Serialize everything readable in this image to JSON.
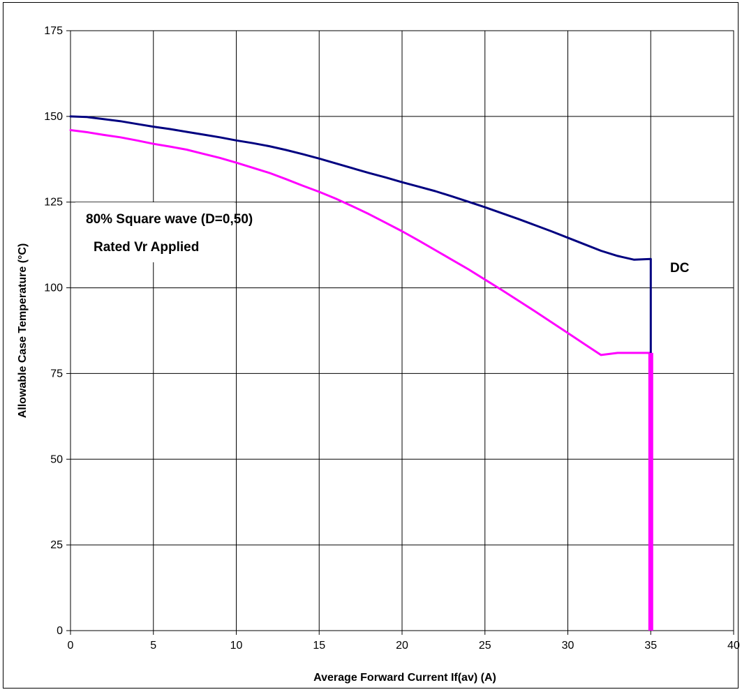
{
  "chart_data": {
    "type": "line",
    "title": "",
    "xlabel": "Average Forward Current  If(av)  (A)",
    "ylabel": "Allowable Case Temperature  (°C)",
    "xlim": [
      0,
      40
    ],
    "ylim": [
      0,
      175
    ],
    "x_ticks": [
      0,
      5,
      10,
      15,
      20,
      25,
      30,
      35,
      40
    ],
    "y_ticks": [
      0,
      25,
      50,
      75,
      100,
      125,
      150,
      175
    ],
    "grid": true,
    "annotations": [
      "80% Square wave (D=0,50)",
      "Rated Vr Applied",
      "DC"
    ],
    "series": [
      {
        "color": "#000080",
        "x": [
          0,
          1,
          2,
          3,
          4,
          5,
          6,
          7,
          8,
          9,
          10,
          11,
          12,
          13,
          14,
          15,
          16,
          17,
          18,
          19,
          20,
          21,
          22,
          23,
          24,
          25,
          26,
          27,
          28,
          29,
          30,
          31,
          32,
          33,
          34,
          35,
          35
        ],
        "y": [
          150,
          149.8,
          149.2,
          148.6,
          147.8,
          147,
          146.3,
          145.5,
          144.7,
          143.9,
          143,
          142.2,
          141.3,
          140.2,
          139,
          137.7,
          136.3,
          134.9,
          133.5,
          132.2,
          130.8,
          129.5,
          128.2,
          126.7,
          125.1,
          123.5,
          121.8,
          120.1,
          118.3,
          116.5,
          114.6,
          112.7,
          110.8,
          109.3,
          108.2,
          108.4,
          81
        ]
      },
      {
        "color": "#ff00ff",
        "x": [
          0,
          1,
          2,
          3,
          4,
          5,
          6,
          7,
          8,
          9,
          10,
          11,
          12,
          13,
          14,
          15,
          16,
          17,
          18,
          19,
          20,
          21,
          22,
          23,
          24,
          25,
          26,
          27,
          28,
          29,
          30,
          31,
          32,
          33,
          34,
          35,
          35
        ],
        "y": [
          146,
          145.4,
          144.6,
          143.9,
          143,
          142,
          141.2,
          140.3,
          139.1,
          137.9,
          136.5,
          135,
          133.5,
          131.7,
          129.8,
          128,
          126,
          123.8,
          121.5,
          119,
          116.5,
          113.8,
          111,
          108.2,
          105.4,
          102.4,
          99.4,
          96.3,
          93.2,
          90,
          86.8,
          83.6,
          80.4,
          81,
          81,
          81,
          0
        ]
      }
    ]
  }
}
